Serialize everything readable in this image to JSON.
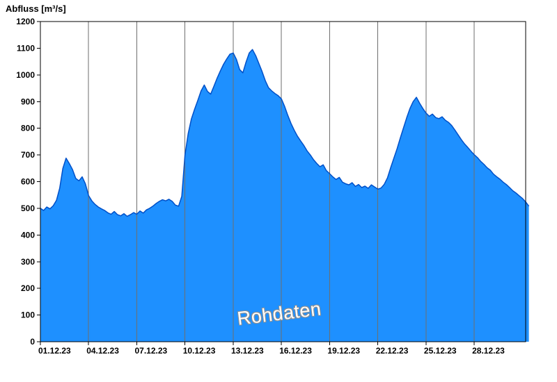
{
  "header": {
    "title": "Abfluss [m³/s]"
  },
  "watermark": "Rohdaten",
  "chart_data": {
    "type": "area",
    "title": "Abfluss [m³/s]",
    "ylabel": "Abfluss [m³/s]",
    "xlabel": "",
    "ylim": [
      0,
      1200
    ],
    "y_ticks": [
      0,
      100,
      200,
      300,
      400,
      500,
      600,
      700,
      800,
      900,
      1000,
      1100,
      1200
    ],
    "x_range_days": [
      0,
      30.2
    ],
    "x_ticks": [
      {
        "day": 0,
        "label": "01.12.23"
      },
      {
        "day": 3,
        "label": "04.12.23"
      },
      {
        "day": 6,
        "label": "07.12.23"
      },
      {
        "day": 9,
        "label": "10.12.23"
      },
      {
        "day": 12,
        "label": "13.12.23"
      },
      {
        "day": 15,
        "label": "16.12.23"
      },
      {
        "day": 18,
        "label": "19.12.23"
      },
      {
        "day": 21,
        "label": "22.12.23"
      },
      {
        "day": 24,
        "label": "25.12.23"
      },
      {
        "day": 27,
        "label": "28.12.23"
      }
    ],
    "grid": "vertical-only",
    "legend": "none",
    "colors": {
      "fill": "#1E90FF",
      "line": "#0050C8",
      "grid": "#6e6e6e",
      "axis": "#000000",
      "text": "#000000"
    },
    "series": [
      {
        "name": "Rohdaten",
        "unit": "m³/s",
        "sample_step_days": 0.2,
        "values": [
          500,
          492,
          505,
          498,
          510,
          530,
          575,
          650,
          688,
          668,
          645,
          612,
          603,
          618,
          592,
          548,
          528,
          515,
          505,
          498,
          492,
          483,
          478,
          488,
          476,
          472,
          480,
          470,
          476,
          484,
          478,
          490,
          482,
          494,
          500,
          508,
          518,
          526,
          532,
          528,
          534,
          526,
          512,
          508,
          545,
          700,
          780,
          835,
          872,
          905,
          940,
          962,
          938,
          928,
          958,
          988,
          1015,
          1040,
          1060,
          1078,
          1082,
          1058,
          1020,
          1008,
          1048,
          1082,
          1095,
          1072,
          1042,
          1012,
          978,
          952,
          940,
          930,
          922,
          910,
          882,
          848,
          818,
          792,
          770,
          752,
          735,
          715,
          700,
          682,
          668,
          656,
          663,
          641,
          630,
          618,
          608,
          616,
          598,
          592,
          588,
          596,
          582,
          589,
          578,
          583,
          575,
          588,
          580,
          572,
          576,
          590,
          614,
          652,
          688,
          724,
          764,
          802,
          840,
          874,
          900,
          916,
          894,
          874,
          857,
          845,
          853,
          840,
          836,
          843,
          830,
          822,
          810,
          793,
          775,
          757,
          741,
          728,
          714,
          701,
          690,
          676,
          665,
          652,
          643,
          628,
          618,
          609,
          598,
          589,
          578,
          566,
          557,
          547,
          537,
          524,
          508
        ]
      }
    ]
  }
}
